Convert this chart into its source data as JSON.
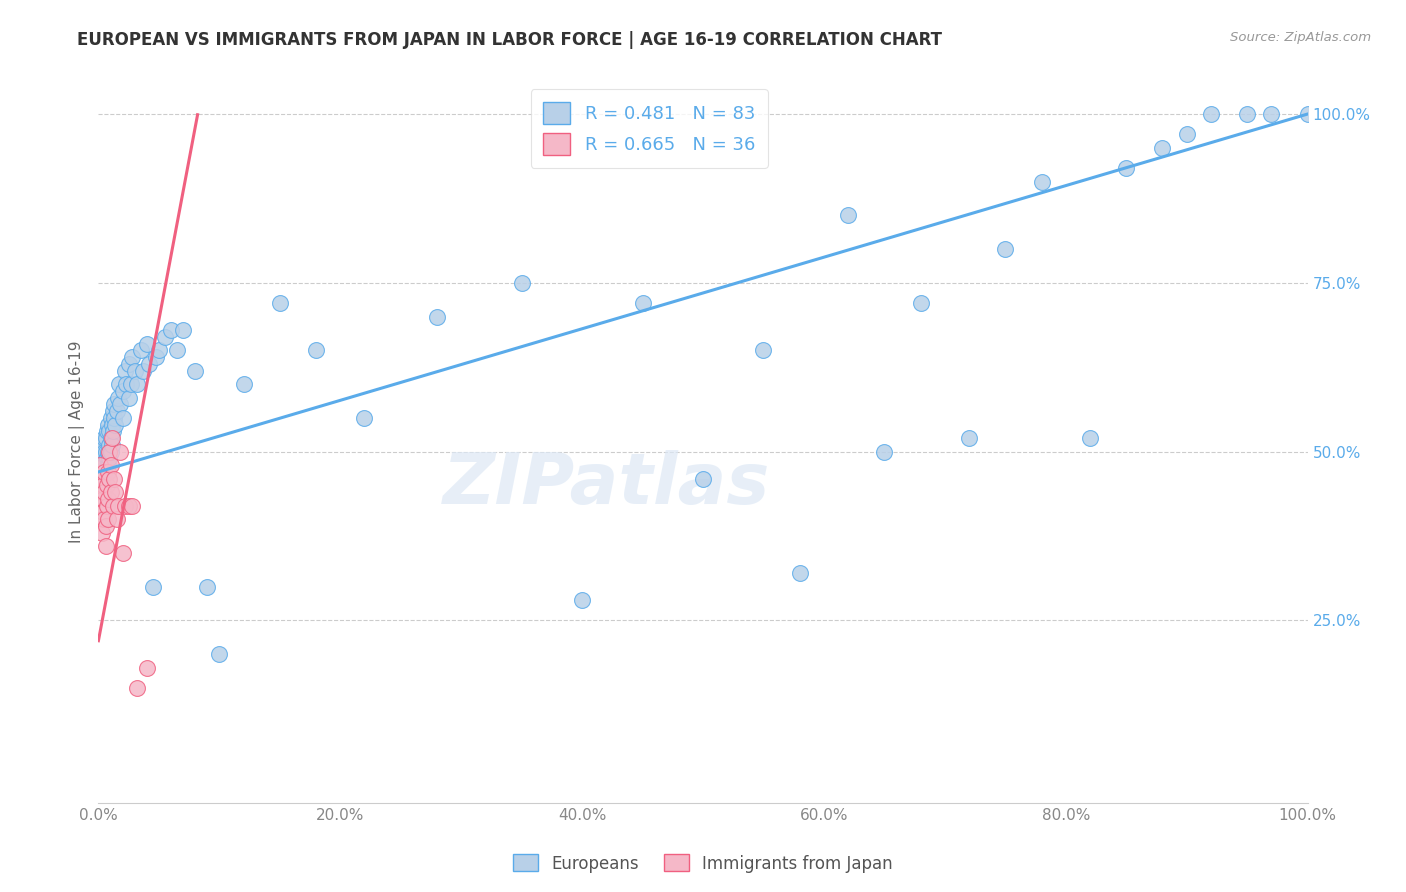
{
  "title": "EUROPEAN VS IMMIGRANTS FROM JAPAN IN LABOR FORCE | AGE 16-19 CORRELATION CHART",
  "source": "Source: ZipAtlas.com",
  "ylabel": "In Labor Force | Age 16-19",
  "xlim": [
    0.0,
    1.0
  ],
  "ylim": [
    -0.02,
    1.05
  ],
  "xtick_labels": [
    "0.0%",
    "20.0%",
    "40.0%",
    "60.0%",
    "80.0%",
    "100.0%"
  ],
  "xtick_vals": [
    0.0,
    0.2,
    0.4,
    0.6,
    0.8,
    1.0
  ],
  "ytick_labels": [
    "25.0%",
    "50.0%",
    "75.0%",
    "100.0%"
  ],
  "ytick_vals": [
    0.25,
    0.5,
    0.75,
    1.0
  ],
  "legend_R1": "0.481",
  "legend_N1": "83",
  "legend_R2": "0.665",
  "legend_N2": "36",
  "color_european": "#b8d0e8",
  "color_japan": "#f5b8c8",
  "color_line_european": "#5aabea",
  "color_line_japan": "#f06080",
  "watermark": "ZIPatlas",
  "european_x": [
    0.002,
    0.003,
    0.003,
    0.004,
    0.004,
    0.004,
    0.005,
    0.005,
    0.005,
    0.006,
    0.006,
    0.006,
    0.007,
    0.007,
    0.008,
    0.008,
    0.008,
    0.009,
    0.009,
    0.009,
    0.01,
    0.01,
    0.01,
    0.011,
    0.011,
    0.012,
    0.012,
    0.013,
    0.013,
    0.014,
    0.015,
    0.016,
    0.017,
    0.018,
    0.02,
    0.02,
    0.022,
    0.023,
    0.025,
    0.025,
    0.027,
    0.028,
    0.03,
    0.032,
    0.035,
    0.037,
    0.04,
    0.042,
    0.045,
    0.048,
    0.05,
    0.055,
    0.06,
    0.065,
    0.07,
    0.08,
    0.09,
    0.1,
    0.12,
    0.15,
    0.18,
    0.22,
    0.28,
    0.35,
    0.4,
    0.45,
    0.5,
    0.55,
    0.58,
    0.62,
    0.65,
    0.68,
    0.72,
    0.75,
    0.78,
    0.82,
    0.85,
    0.88,
    0.9,
    0.92,
    0.95,
    0.97,
    1.0
  ],
  "european_y": [
    0.48,
    0.5,
    0.47,
    0.49,
    0.51,
    0.46,
    0.5,
    0.48,
    0.52,
    0.47,
    0.5,
    0.52,
    0.49,
    0.53,
    0.5,
    0.48,
    0.54,
    0.51,
    0.49,
    0.53,
    0.52,
    0.5,
    0.55,
    0.54,
    0.51,
    0.53,
    0.56,
    0.55,
    0.57,
    0.54,
    0.56,
    0.58,
    0.6,
    0.57,
    0.55,
    0.59,
    0.62,
    0.6,
    0.58,
    0.63,
    0.6,
    0.64,
    0.62,
    0.6,
    0.65,
    0.62,
    0.66,
    0.63,
    0.3,
    0.64,
    0.65,
    0.67,
    0.68,
    0.65,
    0.68,
    0.62,
    0.3,
    0.2,
    0.6,
    0.72,
    0.65,
    0.55,
    0.7,
    0.75,
    0.28,
    0.72,
    0.46,
    0.65,
    0.32,
    0.85,
    0.5,
    0.72,
    0.52,
    0.8,
    0.9,
    0.52,
    0.92,
    0.95,
    0.97,
    1.0,
    1.0,
    1.0,
    1.0
  ],
  "japan_x": [
    0.001,
    0.002,
    0.002,
    0.003,
    0.003,
    0.003,
    0.004,
    0.004,
    0.004,
    0.005,
    0.005,
    0.005,
    0.006,
    0.006,
    0.007,
    0.007,
    0.008,
    0.008,
    0.008,
    0.009,
    0.009,
    0.01,
    0.01,
    0.011,
    0.012,
    0.013,
    0.014,
    0.015,
    0.016,
    0.018,
    0.02,
    0.022,
    0.025,
    0.028,
    0.032,
    0.04
  ],
  "japan_y": [
    0.48,
    0.46,
    0.44,
    0.42,
    0.4,
    0.38,
    0.43,
    0.41,
    0.45,
    0.47,
    0.44,
    0.4,
    0.39,
    0.36,
    0.45,
    0.42,
    0.47,
    0.43,
    0.4,
    0.5,
    0.46,
    0.48,
    0.44,
    0.52,
    0.42,
    0.46,
    0.44,
    0.4,
    0.42,
    0.5,
    0.35,
    0.42,
    0.42,
    0.42,
    0.15,
    0.18
  ]
}
